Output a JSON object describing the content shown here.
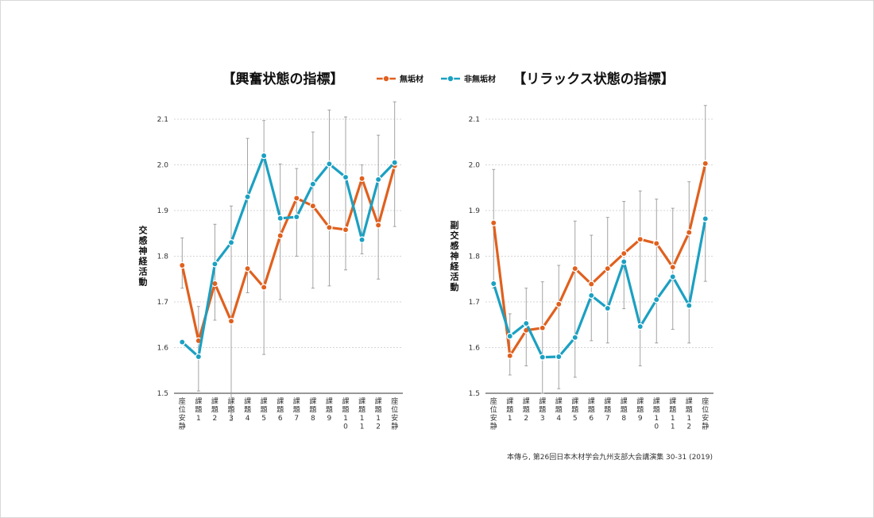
{
  "colors": {
    "series_1": "#e0601e",
    "series_2": "#1ba0c2",
    "errorbar": "#9a9a9a",
    "grid": "#c8c8c8"
  },
  "legend": {
    "series_1_label": "無垢材",
    "series_2_label": "非無垢材"
  },
  "citation": "本傳ら, 第26回日本木材学会九州支部大会講演集 30-31 (2019)",
  "chart_data": [
    {
      "type": "line",
      "title": "【興奮状態の指標】",
      "ylabel": "交感神経活動",
      "ylim": [
        1.5,
        2.1
      ],
      "yticks": [
        "1.5",
        "1.6",
        "1.7",
        "1.8",
        "1.9",
        "2.0",
        "2.1"
      ],
      "grid": true,
      "categories": [
        "座位安静",
        "課題1",
        "課題2",
        "課題3",
        "課題4",
        "課題5",
        "課題6",
        "課題7",
        "課題8",
        "課題9",
        "課題10",
        "課題11",
        "課題12",
        "座位安静"
      ],
      "series": [
        {
          "name": "無垢材",
          "values": [
            1.78,
            1.615,
            1.74,
            1.658,
            1.773,
            1.732,
            1.845,
            1.927,
            1.91,
            1.863,
            1.858,
            1.97,
            1.868,
            1.998
          ],
          "err_low": [
            1.73,
            1.505,
            1.66,
            1.44,
            1.72,
            1.585,
            1.705,
            1.8,
            1.73,
            1.735,
            1.77,
            1.805,
            1.75,
            1.865
          ],
          "err_high": [
            1.84,
            1.69,
            1.87,
            1.91,
            2.058,
            2.097,
            2.002,
            1.992,
            2.072,
            2.12,
            2.105,
            2.0,
            2.065,
            2.138
          ]
        },
        {
          "name": "非無垢材",
          "values": [
            1.612,
            1.58,
            1.783,
            1.83,
            1.93,
            2.02,
            1.883,
            1.886,
            1.958,
            2.002,
            1.973,
            1.836,
            1.968,
            2.005
          ],
          "err_low": [],
          "err_high": []
        }
      ]
    },
    {
      "type": "line",
      "title": "【リラックス状態の指標】",
      "ylabel": "副交感神経活動",
      "ylim": [
        1.5,
        2.1
      ],
      "yticks": [
        "1.5",
        "1.6",
        "1.7",
        "1.8",
        "1.9",
        "2.0",
        "2.1"
      ],
      "grid": true,
      "categories": [
        "座位安静",
        "課題1",
        "課題2",
        "課題3",
        "課題4",
        "課題5",
        "課題6",
        "課題7",
        "課題8",
        "課題9",
        "課題10",
        "課題11",
        "課題12",
        "座位安静"
      ],
      "series": [
        {
          "name": "無垢材",
          "values": [
            1.873,
            1.582,
            1.638,
            1.643,
            1.695,
            1.773,
            1.739,
            1.773,
            1.806,
            1.837,
            1.828,
            1.776,
            1.852,
            2.003
          ],
          "err_low": [
            1.73,
            1.54,
            1.56,
            1.5,
            1.51,
            1.535,
            1.615,
            1.61,
            1.685,
            1.56,
            1.61,
            1.64,
            1.61,
            1.745
          ],
          "err_high": [
            1.99,
            1.674,
            1.73,
            1.744,
            1.78,
            1.877,
            1.846,
            1.885,
            1.92,
            1.943,
            1.925,
            1.905,
            1.963,
            2.13
          ]
        },
        {
          "name": "非無垢材",
          "values": [
            1.74,
            1.625,
            1.653,
            1.579,
            1.58,
            1.622,
            1.714,
            1.686,
            1.788,
            1.646,
            1.705,
            1.755,
            1.692,
            1.882
          ],
          "err_low": [],
          "err_high": []
        }
      ]
    }
  ]
}
